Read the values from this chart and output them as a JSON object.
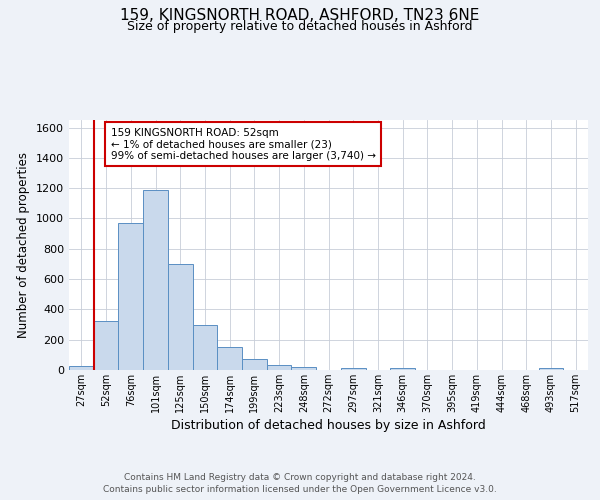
{
  "title_line1": "159, KINGSNORTH ROAD, ASHFORD, TN23 6NE",
  "title_line2": "Size of property relative to detached houses in Ashford",
  "xlabel": "Distribution of detached houses by size in Ashford",
  "ylabel": "Number of detached properties",
  "footnote1": "Contains HM Land Registry data © Crown copyright and database right 2024.",
  "footnote2": "Contains public sector information licensed under the Open Government Licence v3.0.",
  "bin_labels": [
    "27sqm",
    "52sqm",
    "76sqm",
    "101sqm",
    "125sqm",
    "150sqm",
    "174sqm",
    "199sqm",
    "223sqm",
    "248sqm",
    "272sqm",
    "297sqm",
    "321sqm",
    "346sqm",
    "370sqm",
    "395sqm",
    "419sqm",
    "444sqm",
    "468sqm",
    "493sqm",
    "517sqm"
  ],
  "bin_counts": [
    25,
    325,
    970,
    1190,
    700,
    300,
    155,
    70,
    30,
    20,
    0,
    15,
    0,
    10,
    0,
    0,
    0,
    0,
    0,
    15,
    0
  ],
  "bar_color": "#c9d9ec",
  "bar_edge_color": "#5a8fc3",
  "vline_index": 1,
  "vline_color": "#cc0000",
  "annotation_text": "159 KINGSNORTH ROAD: 52sqm\n← 1% of detached houses are smaller (23)\n99% of semi-detached houses are larger (3,740) →",
  "annotation_box_color": "white",
  "annotation_box_edge_color": "#cc0000",
  "ylim": [
    0,
    1650
  ],
  "yticks": [
    0,
    200,
    400,
    600,
    800,
    1000,
    1200,
    1400,
    1600
  ],
  "background_color": "#eef2f8",
  "plot_bg_color": "white",
  "grid_color": "#c8cdd8"
}
